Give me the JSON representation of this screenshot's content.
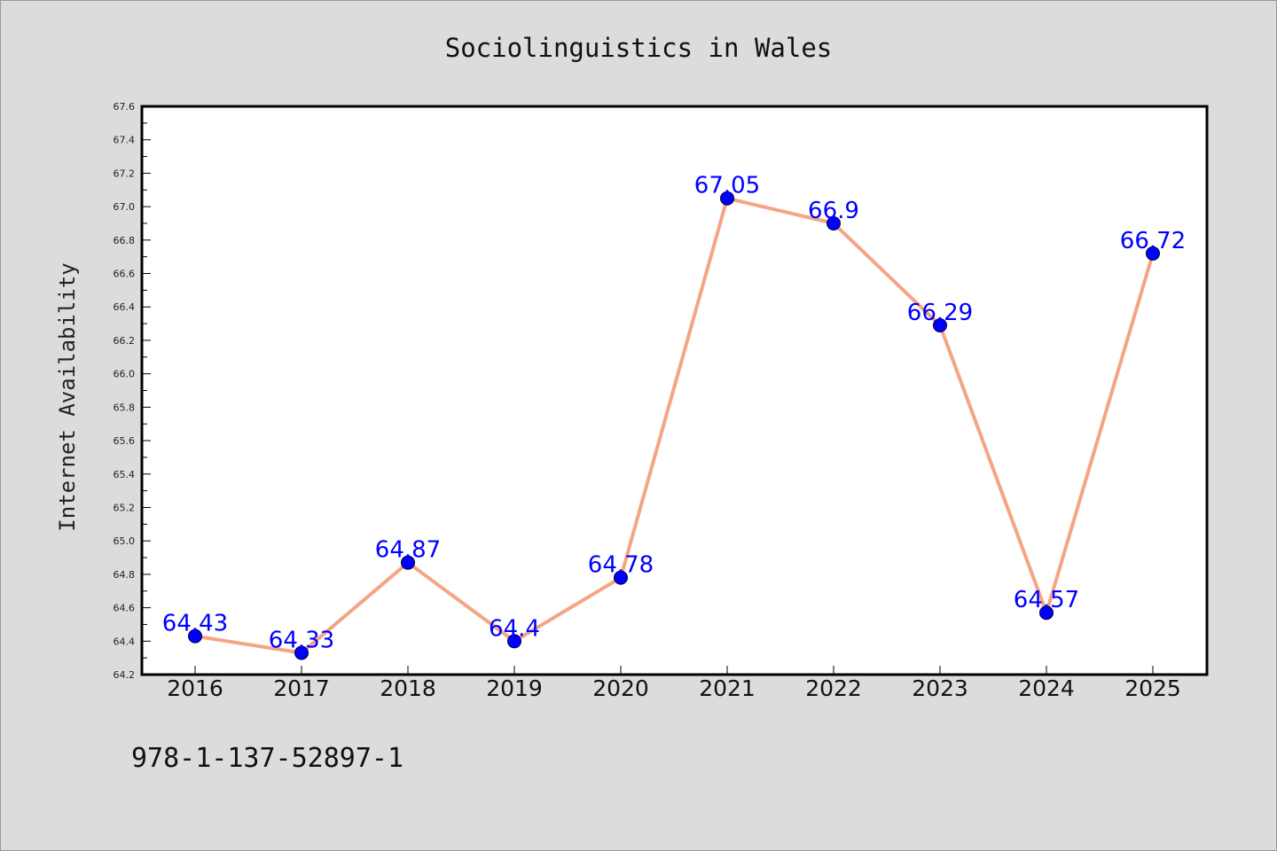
{
  "chart_data": {
    "type": "line",
    "title": "Sociolinguistics in Wales",
    "xlabel": "",
    "ylabel": "Internet Availability",
    "categories": [
      "2016",
      "2017",
      "2018",
      "2019",
      "2020",
      "2021",
      "2022",
      "2023",
      "2024",
      "2025"
    ],
    "series": [
      {
        "values": [
          64.43,
          64.33,
          64.87,
          64.4,
          64.78,
          67.05,
          66.9,
          66.29,
          64.57,
          66.72
        ],
        "data_labels": [
          "64.43",
          "64.33",
          "64.87",
          "64.4",
          "64.78",
          "67.05",
          "66.9",
          "66.29",
          "64.57",
          "66.72"
        ],
        "line_color": "#f4a582",
        "marker_color": "#0000ff"
      }
    ],
    "ylim": [
      64.2,
      67.6
    ],
    "yticks": [
      "64.2",
      "64.4",
      "64.6",
      "64.8",
      "65.0",
      "65.2",
      "65.4",
      "65.6",
      "65.8",
      "66.0",
      "66.2",
      "66.4",
      "66.6",
      "66.8",
      "67.0",
      "67.2",
      "67.4",
      "67.6"
    ],
    "grid": false,
    "legend": "none"
  },
  "footer": {
    "isbn": "978-1-137-52897-1"
  },
  "colors": {
    "background": "#dcdcdc",
    "plot_background": "#ffffff",
    "axis": "#000000",
    "line": "#f4a582",
    "marker": "#0000ff",
    "data_label": "#0000ff"
  }
}
